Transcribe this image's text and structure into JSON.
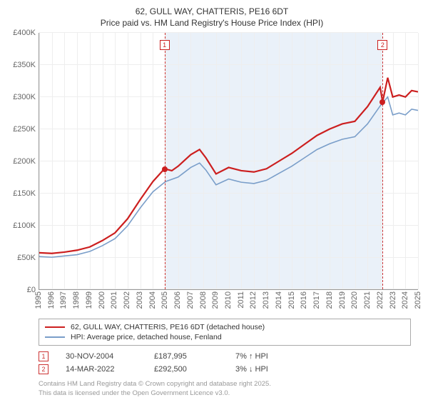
{
  "title": {
    "line1": "62, GULL WAY, CHATTERIS, PE16 6DT",
    "line2": "Price paid vs. HM Land Registry's House Price Index (HPI)"
  },
  "chart": {
    "type": "line",
    "ylim": [
      0,
      400000
    ],
    "ytick_step": 50000,
    "yticks": [
      "£0",
      "£50K",
      "£100K",
      "£150K",
      "£200K",
      "£250K",
      "£300K",
      "£350K",
      "£400K"
    ],
    "xyears": [
      1995,
      1996,
      1997,
      1998,
      1999,
      2000,
      2001,
      2002,
      2003,
      2004,
      2005,
      2006,
      2007,
      2008,
      2009,
      2010,
      2011,
      2012,
      2013,
      2014,
      2015,
      2016,
      2017,
      2018,
      2019,
      2020,
      2021,
      2022,
      2023,
      2024,
      2025
    ],
    "background_color": "#ffffff",
    "grid_color": "#eeeeee",
    "axis_color": "#999999",
    "shade_color": "#eaf1f9",
    "shade_start_year": 2004.92,
    "shade_end_year": 2022.2,
    "vdash_color": "#cc3333",
    "tick_fontsize": 11,
    "series": [
      {
        "name": "primary",
        "color": "#cc1f1f",
        "width": 2.2,
        "label": "62, GULL WAY, CHATTERIS, PE16 6DT (detached house)",
        "points": [
          [
            1995,
            57000
          ],
          [
            1996,
            56000
          ],
          [
            1997,
            58000
          ],
          [
            1998,
            61000
          ],
          [
            1999,
            66000
          ],
          [
            2000,
            76000
          ],
          [
            2001,
            88000
          ],
          [
            2002,
            110000
          ],
          [
            2003,
            140000
          ],
          [
            2004,
            168000
          ],
          [
            2004.92,
            187995
          ],
          [
            2005.5,
            185000
          ],
          [
            2006,
            192000
          ],
          [
            2007,
            210000
          ],
          [
            2007.7,
            218000
          ],
          [
            2008.2,
            205000
          ],
          [
            2009,
            180000
          ],
          [
            2010,
            190000
          ],
          [
            2011,
            185000
          ],
          [
            2012,
            183000
          ],
          [
            2013,
            188000
          ],
          [
            2014,
            200000
          ],
          [
            2015,
            212000
          ],
          [
            2016,
            226000
          ],
          [
            2017,
            240000
          ],
          [
            2018,
            250000
          ],
          [
            2019,
            258000
          ],
          [
            2020,
            262000
          ],
          [
            2021,
            285000
          ],
          [
            2022,
            315000
          ],
          [
            2022.2,
            292500
          ],
          [
            2022.6,
            330000
          ],
          [
            2023,
            300000
          ],
          [
            2023.5,
            303000
          ],
          [
            2024,
            300000
          ],
          [
            2024.5,
            310000
          ],
          [
            2025,
            308000
          ]
        ]
      },
      {
        "name": "hpi",
        "color": "#7a9ec9",
        "width": 1.6,
        "label": "HPI: Average price, detached house, Fenland",
        "points": [
          [
            1995,
            51000
          ],
          [
            1996,
            50000
          ],
          [
            1997,
            52000
          ],
          [
            1998,
            54000
          ],
          [
            1999,
            59000
          ],
          [
            2000,
            68000
          ],
          [
            2001,
            79000
          ],
          [
            2002,
            99000
          ],
          [
            2003,
            127000
          ],
          [
            2004,
            152000
          ],
          [
            2005,
            168000
          ],
          [
            2006,
            175000
          ],
          [
            2007,
            190000
          ],
          [
            2007.7,
            197000
          ],
          [
            2008.2,
            186000
          ],
          [
            2009,
            163000
          ],
          [
            2010,
            172000
          ],
          [
            2011,
            167000
          ],
          [
            2012,
            165000
          ],
          [
            2013,
            170000
          ],
          [
            2014,
            181000
          ],
          [
            2015,
            192000
          ],
          [
            2016,
            205000
          ],
          [
            2017,
            218000
          ],
          [
            2018,
            227000
          ],
          [
            2019,
            234000
          ],
          [
            2020,
            238000
          ],
          [
            2021,
            258000
          ],
          [
            2022,
            286000
          ],
          [
            2022.6,
            300000
          ],
          [
            2023,
            272000
          ],
          [
            2023.5,
            275000
          ],
          [
            2024,
            272000
          ],
          [
            2024.5,
            281000
          ],
          [
            2025,
            279000
          ]
        ]
      }
    ],
    "events": [
      {
        "n": "1",
        "year": 2004.92,
        "value": 187995,
        "color": "#cc1f1f"
      },
      {
        "n": "2",
        "year": 2022.2,
        "value": 292500,
        "color": "#cc1f1f"
      }
    ]
  },
  "sales": [
    {
      "n": "1",
      "date": "30-NOV-2004",
      "price": "£187,995",
      "delta": "7% ↑ HPI",
      "color": "#cc3333"
    },
    {
      "n": "2",
      "date": "14-MAR-2022",
      "price": "£292,500",
      "delta": "3% ↓ HPI",
      "color": "#cc3333"
    }
  ],
  "footer": {
    "line1": "Contains HM Land Registry data © Crown copyright and database right 2025.",
    "line2": "This data is licensed under the Open Government Licence v3.0."
  }
}
